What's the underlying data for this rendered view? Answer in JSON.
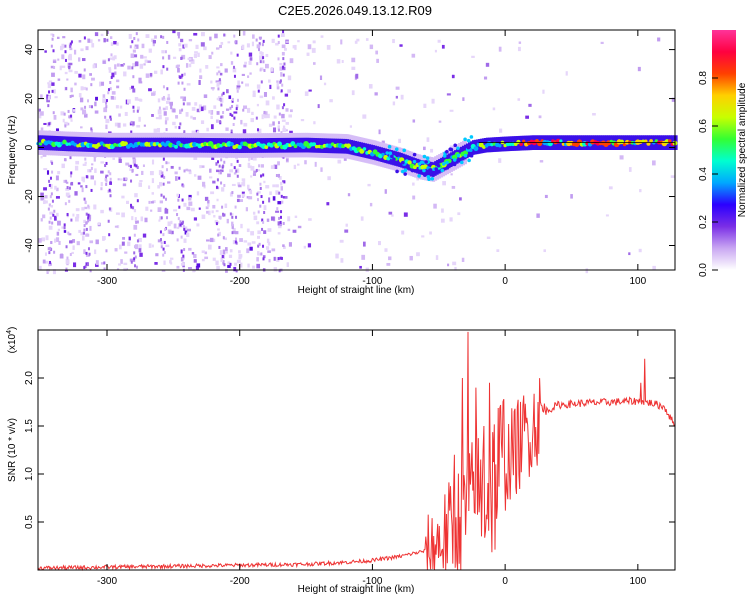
{
  "page": {
    "title": "C2E5.2026.049.13.12.R09"
  },
  "chart_data": [
    {
      "type": "heatmap",
      "title": "C2E5.2026.049.13.12.R09",
      "xlabel": "Height of straight line (km)",
      "ylabel": "Frequency (Hz)",
      "xlim": [
        -352,
        128
      ],
      "ylim": [
        -50,
        48
      ],
      "x_ticks": [
        -300,
        -200,
        -100,
        0,
        100
      ],
      "y_ticks": [
        -40,
        -20,
        0,
        20,
        40
      ],
      "colorbar": {
        "label": "Normalized spectral amplitude",
        "range": [
          0,
          1
        ],
        "ticks": [
          0.0,
          0.2,
          0.4,
          0.6,
          0.8
        ],
        "colors": [
          "#ffffff",
          "#c9a6f2",
          "#7a2ee6",
          "#2b00ff",
          "#00a8ff",
          "#00ffd0",
          "#33ff33",
          "#c8ff00",
          "#ffd000",
          "#ff4000",
          "#ff0040",
          "#ff3399"
        ]
      },
      "ridge": {
        "x": [
          -350,
          -330,
          -300,
          -250,
          -200,
          -150,
          -120,
          -100,
          -80,
          -65,
          -55,
          -45,
          -35,
          -25,
          -15,
          0,
          20,
          50,
          80,
          100,
          128
        ],
        "y": [
          2,
          1.5,
          1,
          1,
          0.8,
          1,
          0.5,
          -2,
          -5,
          -8,
          -9,
          -6,
          -3,
          0,
          1,
          1.5,
          2,
          2,
          2,
          2,
          2
        ]
      }
    },
    {
      "type": "line",
      "xlabel": "Height of straight line (km)",
      "ylabel": "SNR (10 * v/v)",
      "scale_label": "(x10",
      "scale_exp": "4",
      "xlim": [
        -352,
        128
      ],
      "ylim": [
        0,
        2.5
      ],
      "x_ticks": [
        -300,
        -200,
        -100,
        0,
        100
      ],
      "y_ticks": [
        0.5,
        1.0,
        1.5,
        2.0
      ],
      "color": "#ee3333",
      "trend": {
        "x": [
          -352,
          -300,
          -250,
          -200,
          -150,
          -120,
          -100,
          -80,
          -60,
          -50,
          -40,
          -30,
          -20,
          -10,
          0,
          10,
          20,
          30,
          40,
          60,
          80,
          100,
          110,
          120,
          128
        ],
        "y": [
          0.02,
          0.03,
          0.04,
          0.05,
          0.06,
          0.08,
          0.1,
          0.14,
          0.2,
          0.28,
          0.45,
          0.6,
          0.75,
          0.9,
          1.1,
          1.3,
          1.5,
          1.65,
          1.72,
          1.74,
          1.75,
          1.76,
          1.74,
          1.7,
          1.5
        ]
      },
      "spikes": [
        {
          "x": -28,
          "y": 2.48
        },
        {
          "x": -32,
          "y": 2.0
        },
        {
          "x": -22,
          "y": 1.9
        },
        {
          "x": -12,
          "y": 1.95
        },
        {
          "x": -16,
          "y": 1.5
        },
        {
          "x": -38,
          "y": 1.2
        },
        {
          "x": 105,
          "y": 2.2
        },
        {
          "x": 102,
          "y": 1.95
        }
      ]
    }
  ]
}
